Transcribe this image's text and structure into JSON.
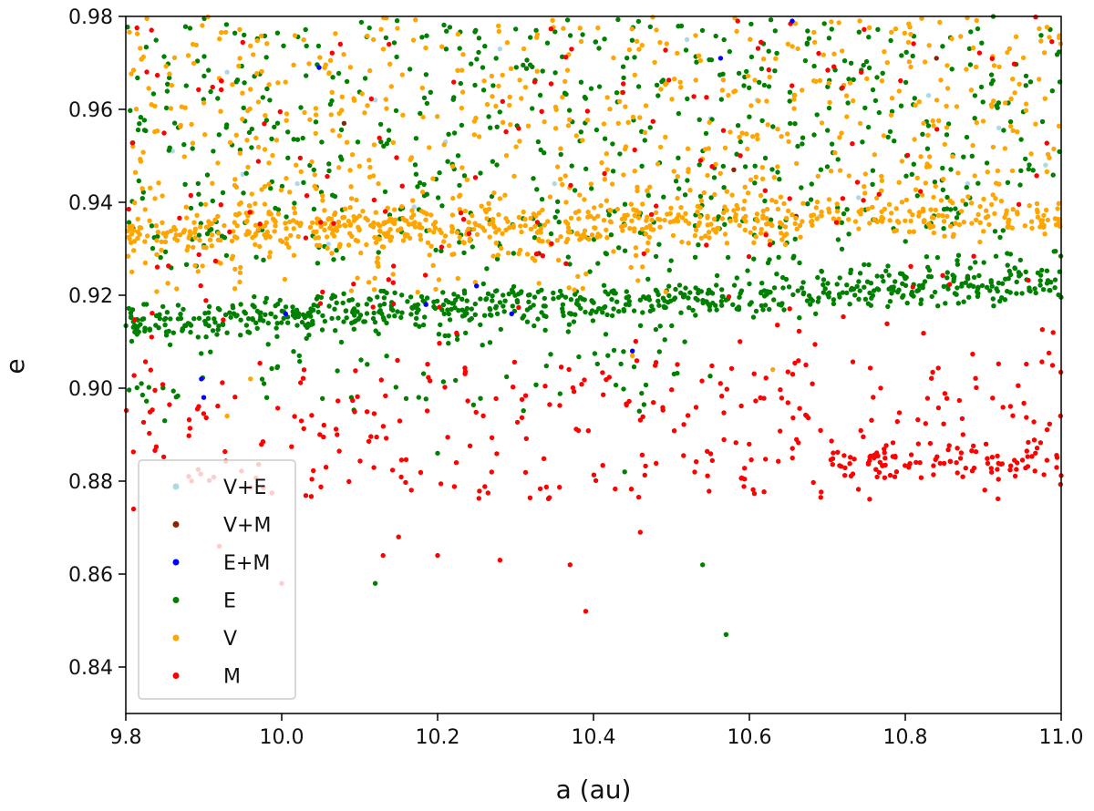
{
  "chart_data": {
    "type": "scatter",
    "title": "",
    "xlabel": "a (au)",
    "ylabel": "e",
    "xlim": [
      9.8,
      11.0
    ],
    "ylim": [
      0.83,
      0.98
    ],
    "x_ticks": [
      "9.8",
      "10.0",
      "10.2",
      "10.4",
      "10.6",
      "10.8",
      "11.0"
    ],
    "y_ticks": [
      "0.84",
      "0.86",
      "0.88",
      "0.90",
      "0.92",
      "0.94",
      "0.96",
      "0.98"
    ],
    "grid": false,
    "legend_position": "lower-left",
    "legend": [
      "V+E",
      "V+M",
      "E+M",
      "E",
      "V",
      "M"
    ],
    "colors": {
      "V+E": "#add8e6",
      "V+M": "#8b2500",
      "E+M": "#0000ff",
      "E": "#008000",
      "V": "#ffa500",
      "M": "#ff0000"
    },
    "series": [
      {
        "name": "V+E",
        "points": [
          [
            9.86,
            0.951
          ],
          [
            9.95,
            0.946
          ],
          [
            10.02,
            0.944
          ],
          [
            10.06,
            0.931
          ],
          [
            10.12,
            0.962
          ],
          [
            10.21,
            0.953
          ],
          [
            10.28,
            0.973
          ],
          [
            10.35,
            0.944
          ],
          [
            10.47,
            0.942
          ],
          [
            10.55,
            0.958
          ],
          [
            10.61,
            0.962
          ],
          [
            10.69,
            0.937
          ],
          [
            10.74,
            0.941
          ],
          [
            10.83,
            0.963
          ],
          [
            10.92,
            0.956
          ],
          [
            10.98,
            0.948
          ],
          [
            9.93,
            0.968
          ],
          [
            10.17,
            0.939
          ],
          [
            10.52,
            0.975
          ],
          [
            10.88,
            0.944
          ]
        ]
      },
      {
        "name": "V+M",
        "points": [
          [
            9.97,
            0.934
          ],
          [
            10.08,
            0.957
          ],
          [
            10.33,
            0.929
          ],
          [
            10.58,
            0.947
          ],
          [
            10.66,
            0.937
          ],
          [
            10.84,
            0.971
          ]
        ]
      },
      {
        "name": "E+M",
        "points": [
          [
            9.897,
            0.902
          ],
          [
            9.9,
            0.898
          ],
          [
            10.005,
            0.916
          ],
          [
            10.048,
            0.969
          ],
          [
            10.185,
            0.918
          ],
          [
            10.25,
            0.922
          ],
          [
            10.295,
            0.916
          ],
          [
            10.45,
            0.908
          ],
          [
            10.563,
            0.971
          ],
          [
            10.655,
            0.979
          ]
        ]
      },
      {
        "name": "E",
        "points": [],
        "generator": "dense"
      },
      {
        "name": "V",
        "points": [],
        "generator": "dense"
      },
      {
        "name": "M",
        "points": [],
        "generator": "dense"
      }
    ]
  }
}
